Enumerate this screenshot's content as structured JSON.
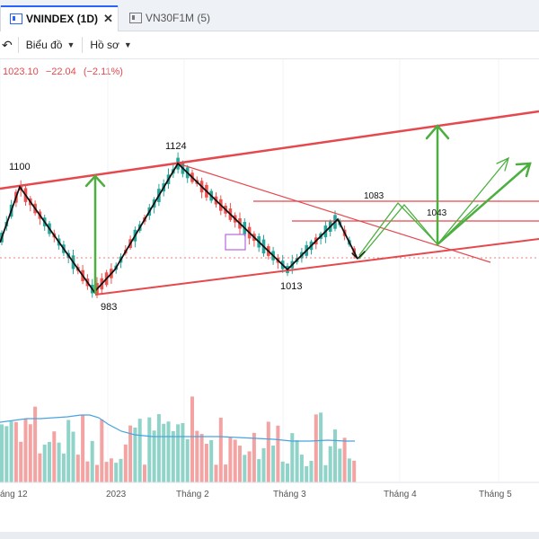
{
  "tabs": [
    {
      "label": "VNINDEX (1D)",
      "close": "✕",
      "active": true
    },
    {
      "label": "VN30F1M (5)",
      "active": false
    }
  ],
  "toolbar": {
    "undo_icon": "undo-icon",
    "chart_label": "Biểu đồ",
    "profile_label": "Hồ sơ"
  },
  "legend": {
    "price": "1023.10",
    "change": "−22.04",
    "change_pct": "(−2.11%)"
  },
  "colors": {
    "up": "#26a69a",
    "down": "#ef5350",
    "trend": "#e5484d",
    "pattern": "#111111",
    "projection": "#4caf3f",
    "ma": "#4aa3df"
  },
  "chart_data": {
    "type": "candlestick",
    "x_ticks": [
      "áng 12",
      "2023",
      "Tháng 2",
      "Tháng 3",
      "Tháng 4",
      "Tháng 5"
    ],
    "annotations": [
      {
        "text": "1100"
      },
      {
        "text": "1124"
      },
      {
        "text": "983"
      },
      {
        "text": "1013"
      },
      {
        "text": "1083"
      },
      {
        "text": "1043"
      }
    ],
    "last_price": 1023.1
  }
}
